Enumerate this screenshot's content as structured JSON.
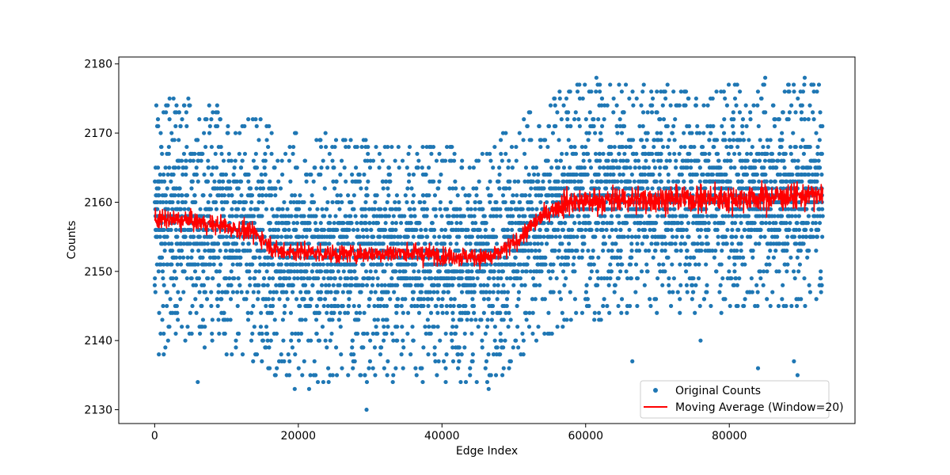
{
  "chart_data": {
    "type": "scatter",
    "title": "",
    "xlabel": "Edge Index",
    "ylabel": "Counts",
    "xlim": [
      -5000,
      97500
    ],
    "ylim": [
      2128,
      2181
    ],
    "xticks": [
      0,
      20000,
      40000,
      60000,
      80000
    ],
    "yticks": [
      2130,
      2140,
      2150,
      2160,
      2170,
      2180
    ],
    "x_range": [
      0,
      93000
    ],
    "grid": false,
    "legend_position": "lower-right",
    "colors": {
      "scatter": "#1f77b4",
      "line": "#ff0000"
    },
    "series": [
      {
        "name": "Original Counts",
        "kind": "scatter",
        "trend_x": [
          0,
          5000,
          10000,
          14000,
          17000,
          25000,
          35000,
          40000,
          47000,
          50000,
          54000,
          57000,
          70000,
          80000,
          93000
        ],
        "trend_y": [
          2157.5,
          2157.3,
          2156.5,
          2155.5,
          2153,
          2152.5,
          2152.7,
          2152.3,
          2152,
          2154,
          2158,
          2160,
          2160.5,
          2160.5,
          2161
        ],
        "band_min": [
          2137,
          2139,
          2138,
          2136,
          2134,
          2134,
          2134,
          2134,
          2133,
          2136,
          2140,
          2142,
          2144,
          2144,
          2145
        ],
        "band_max": [
          2175,
          2175,
          2174,
          2173,
          2170,
          2170,
          2168,
          2169,
          2168,
          2172,
          2175,
          2177,
          2177,
          2177,
          2178
        ],
        "outliers": [
          [
            29500,
            2130
          ],
          [
            6000,
            2134
          ],
          [
            19500,
            2133
          ],
          [
            21500,
            2133
          ],
          [
            46500,
            2133
          ],
          [
            84000,
            2136
          ],
          [
            89500,
            2135
          ],
          [
            66500,
            2137
          ],
          [
            76000,
            2140
          ],
          [
            89000,
            2137
          ],
          [
            61500,
            2178
          ],
          [
            85000,
            2178
          ],
          [
            90500,
            2178
          ]
        ]
      },
      {
        "name": "Moving Average (Window=20)",
        "kind": "line",
        "trend_x": [
          0,
          5000,
          10000,
          14000,
          17000,
          25000,
          35000,
          40000,
          47000,
          50000,
          54000,
          57000,
          70000,
          80000,
          93000
        ],
        "trend_y": [
          2157.5,
          2157.3,
          2156.5,
          2155.5,
          2153,
          2152.5,
          2152.7,
          2152.3,
          2152,
          2154,
          2158,
          2160,
          2160.5,
          2160.5,
          2161
        ]
      }
    ]
  }
}
